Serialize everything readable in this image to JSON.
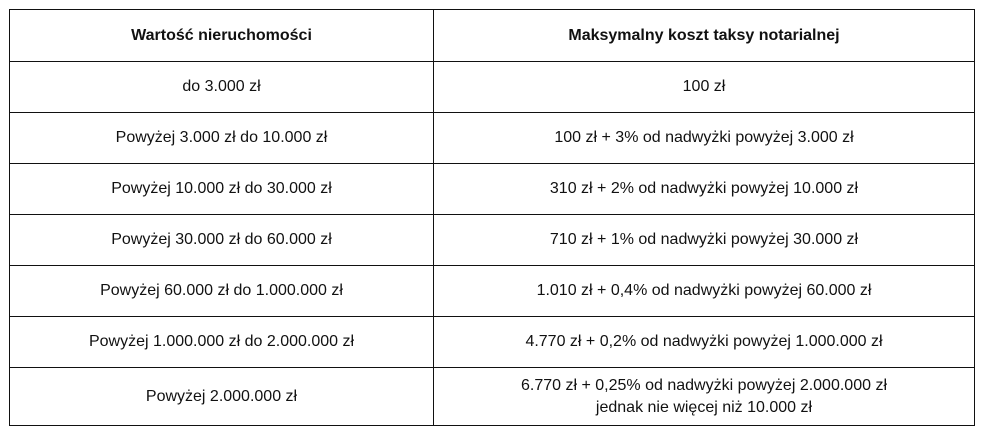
{
  "table": {
    "headers": [
      "Wartość nieruchomości",
      "Maksymalny koszt taksy notarialnej"
    ],
    "rows": [
      {
        "value": "do 3.000 zł",
        "cost": "100 zł"
      },
      {
        "value": "Powyżej 3.000 zł do 10.000 zł",
        "cost": "100 zł + 3% od nadwyżki powyżej 3.000 zł"
      },
      {
        "value": "Powyżej 10.000 zł do 30.000 zł",
        "cost": "310 zł + 2% od nadwyżki powyżej 10.000 zł"
      },
      {
        "value": "Powyżej 30.000 zł do 60.000 zł",
        "cost": "710 zł + 1% od nadwyżki powyżej 30.000 zł"
      },
      {
        "value": "Powyżej 60.000 zł do 1.000.000 zł",
        "cost": "1.010 zł + 0,4% od nadwyżki powyżej 60.000 zł"
      },
      {
        "value": "Powyżej 1.000.000 zł do 2.000.000 zł",
        "cost": "4.770 zł + 0,2% od nadwyżki powyżej 1.000.000 zł"
      },
      {
        "value": "Powyżej 2.000.000 zł",
        "cost": "6.770 zł + 0,25% od nadwyżki powyżej 2.000.000 zł",
        "cost_line2": "jednak nie więcej niż 10.000 zł"
      }
    ]
  }
}
